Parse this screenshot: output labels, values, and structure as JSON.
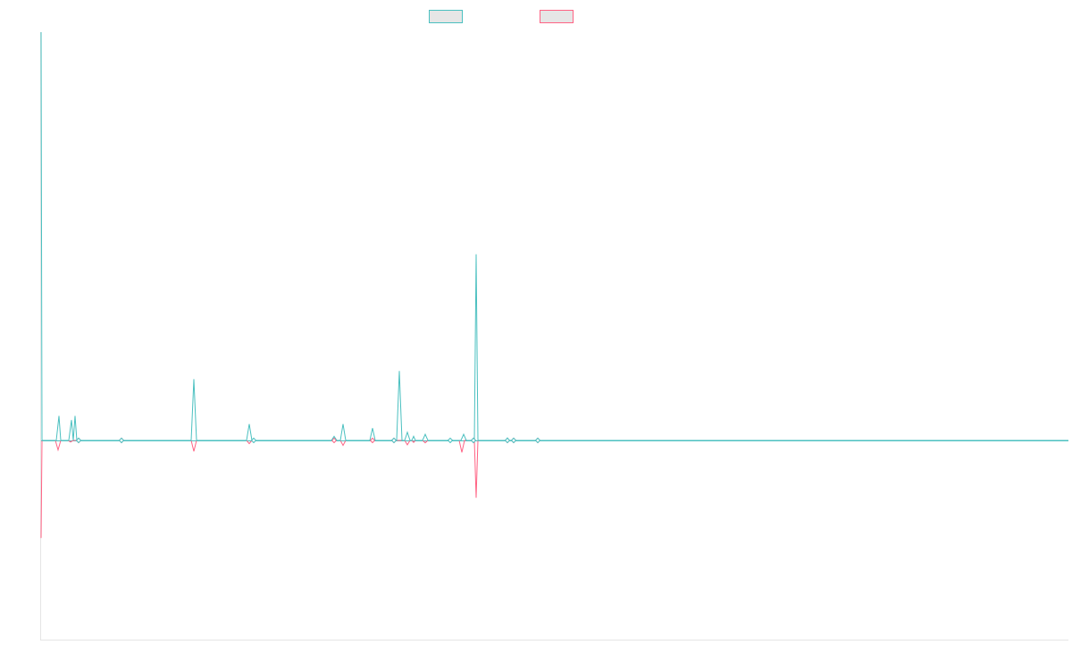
{
  "chart_data": {
    "type": "line",
    "title": "",
    "xlabel": "",
    "ylabel": "",
    "grid": false,
    "legend_position": "top-center",
    "x_count": 1151,
    "ylim": [
      -1.0,
      1.0
    ],
    "series": [
      {
        "name": "",
        "color": "#4bc0c0",
        "fill": "#e6e6e6",
        "direction": "up",
        "points": [
          [
            0,
            1.0
          ],
          [
            1,
            0.0
          ],
          [
            2,
            0.0
          ],
          [
            17,
            0.0
          ],
          [
            20,
            0.06
          ],
          [
            22,
            0.0
          ],
          [
            31,
            0.0
          ],
          [
            34,
            0.05
          ],
          [
            36,
            0.0
          ],
          [
            38,
            0.06
          ],
          [
            40,
            0.0
          ],
          [
            42,
            0.005
          ],
          [
            44,
            0.0
          ],
          [
            88,
            0.0
          ],
          [
            90,
            0.002
          ],
          [
            92,
            0.0
          ],
          [
            168,
            0.0
          ],
          [
            171,
            0.15
          ],
          [
            174,
            0.0
          ],
          [
            230,
            0.0
          ],
          [
            233,
            0.04
          ],
          [
            236,
            0.0
          ],
          [
            238,
            0.002
          ],
          [
            240,
            0.0
          ],
          [
            325,
            0.0
          ],
          [
            328,
            0.01
          ],
          [
            331,
            0.0
          ],
          [
            335,
            0.0
          ],
          [
            338,
            0.04
          ],
          [
            341,
            0.0
          ],
          [
            368,
            0.0
          ],
          [
            371,
            0.03
          ],
          [
            374,
            0.0
          ],
          [
            392,
            0.0
          ],
          [
            395,
            0.003
          ],
          [
            398,
            0.0
          ],
          [
            398,
            0.0
          ],
          [
            401,
            0.17
          ],
          [
            404,
            0.0
          ],
          [
            407,
            0.0
          ],
          [
            410,
            0.02
          ],
          [
            413,
            0.0
          ],
          [
            415,
            0.0
          ],
          [
            417,
            0.01
          ],
          [
            419,
            0.0
          ],
          [
            427,
            0.0
          ],
          [
            430,
            0.015
          ],
          [
            433,
            0.0
          ],
          [
            455,
            0.0
          ],
          [
            458,
            0.003
          ],
          [
            461,
            0.0
          ],
          [
            470,
            0.0
          ],
          [
            473,
            0.015
          ],
          [
            476,
            0.0
          ],
          [
            482,
            0.0
          ],
          [
            484,
            0.004
          ],
          [
            486,
            0.0
          ],
          [
            485,
            0.0
          ],
          [
            487,
            0.456
          ],
          [
            489,
            0.0
          ],
          [
            520,
            0.0
          ],
          [
            522,
            0.006
          ],
          [
            524,
            0.0
          ],
          [
            527,
            0.0
          ],
          [
            529,
            0.002
          ],
          [
            531,
            0.0
          ],
          [
            554,
            0.0
          ],
          [
            556,
            0.005
          ],
          [
            558,
            0.0
          ],
          [
            1150,
            0.0
          ]
        ]
      },
      {
        "name": "",
        "color": "#ff6384",
        "fill": "#e6e6e6",
        "direction": "down",
        "points": [
          [
            0,
            -0.49
          ],
          [
            1,
            0.0
          ],
          [
            2,
            0.0
          ],
          [
            16,
            0.0
          ],
          [
            19,
            -0.048
          ],
          [
            22,
            0.0
          ],
          [
            30,
            0.0
          ],
          [
            33,
            -0.008
          ],
          [
            36,
            0.0
          ],
          [
            40,
            0.0
          ],
          [
            42,
            -0.006
          ],
          [
            44,
            0.0
          ],
          [
            88,
            0.0
          ],
          [
            90,
            -0.002
          ],
          [
            92,
            0.0
          ],
          [
            168,
            0.0
          ],
          [
            171,
            -0.055
          ],
          [
            174,
            0.0
          ],
          [
            230,
            0.0
          ],
          [
            233,
            -0.016
          ],
          [
            236,
            0.0
          ],
          [
            238,
            -0.008
          ],
          [
            240,
            0.0
          ],
          [
            325,
            0.0
          ],
          [
            328,
            -0.004
          ],
          [
            331,
            0.0
          ],
          [
            335,
            0.0
          ],
          [
            338,
            -0.025
          ],
          [
            341,
            0.0
          ],
          [
            368,
            0.0
          ],
          [
            371,
            -0.004
          ],
          [
            374,
            0.0
          ],
          [
            392,
            0.0
          ],
          [
            395,
            -0.003
          ],
          [
            398,
            0.0
          ],
          [
            407,
            0.0
          ],
          [
            410,
            -0.022
          ],
          [
            413,
            0.0
          ],
          [
            415,
            0.0
          ],
          [
            417,
            -0.01
          ],
          [
            419,
            0.0
          ],
          [
            427,
            0.0
          ],
          [
            430,
            -0.012
          ],
          [
            433,
            0.0
          ],
          [
            468,
            0.0
          ],
          [
            471,
            -0.06
          ],
          [
            474,
            0.0
          ],
          [
            482,
            0.0
          ],
          [
            484,
            -0.004
          ],
          [
            486,
            0.0
          ],
          [
            485,
            0.0
          ],
          [
            487,
            -0.288
          ],
          [
            489,
            0.0
          ],
          [
            520,
            0.0
          ],
          [
            522,
            -0.004
          ],
          [
            524,
            0.0
          ],
          [
            527,
            0.0
          ],
          [
            529,
            -0.003
          ],
          [
            531,
            0.0
          ],
          [
            554,
            0.0
          ],
          [
            556,
            -0.002
          ],
          [
            558,
            0.0
          ],
          [
            1150,
            0.0
          ]
        ]
      }
    ]
  }
}
